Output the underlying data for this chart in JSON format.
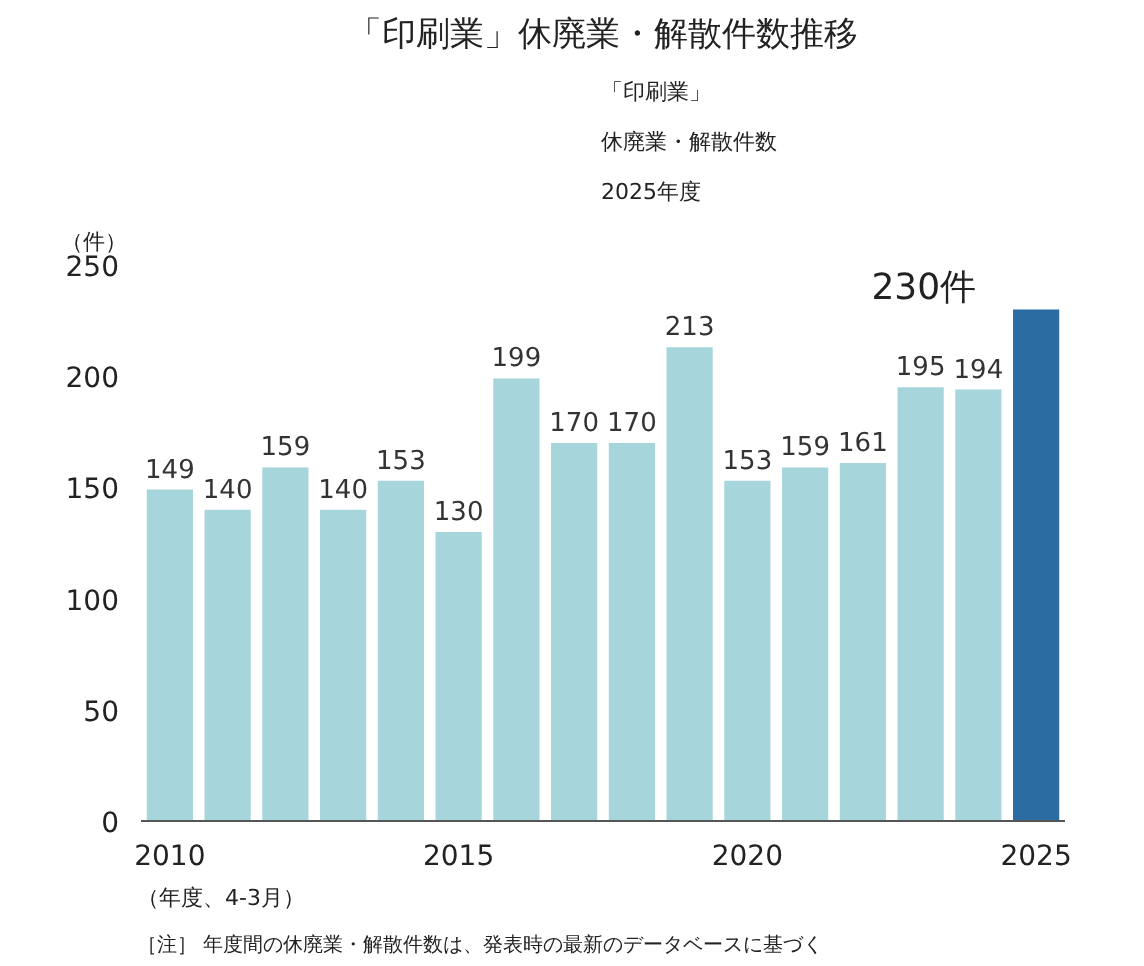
{
  "chart_data": {
    "type": "bar",
    "title": "「印刷業」休廃業・解散件数推移",
    "ylabel": "（件）",
    "xlabel": "（年度、4-3月）",
    "x": [
      2010,
      2011,
      2012,
      2013,
      2014,
      2015,
      2016,
      2017,
      2018,
      2019,
      2020,
      2021,
      2022,
      2023,
      2024,
      2025
    ],
    "values": [
      149,
      140,
      159,
      140,
      153,
      130,
      199,
      170,
      170,
      213,
      153,
      159,
      161,
      195,
      194,
      230
    ],
    "colors": [
      "#a6d6dc",
      "#a6d6dc",
      "#a6d6dc",
      "#a6d6dc",
      "#a6d6dc",
      "#a6d6dc",
      "#a6d6dc",
      "#a6d6dc",
      "#a6d6dc",
      "#a6d6dc",
      "#a6d6dc",
      "#a6d6dc",
      "#a6d6dc",
      "#a6d6dc",
      "#a6d6dc",
      "#2b6ca3"
    ],
    "value_labels": [
      "149",
      "140",
      "159",
      "140",
      "153",
      "130",
      "199",
      "170",
      "170",
      "213",
      "153",
      "159",
      "161",
      "195",
      "194",
      null
    ],
    "xlim": [
      2009.5,
      2025.5
    ],
    "xticks": [
      2010,
      2015,
      2020,
      2025
    ],
    "ylim": [
      0,
      250
    ],
    "yticks": [
      0,
      50,
      100,
      150,
      200,
      250
    ],
    "annotations": [
      "「印刷業」",
      "休廃業・解散件数",
      "2025年度",
      {
        "text": "230件",
        "x": 2025,
        "y": 230
      },
      "［注］ 年度間の休廃業・解散件数は、発表時の最新のデータベースに基づく"
    ]
  }
}
